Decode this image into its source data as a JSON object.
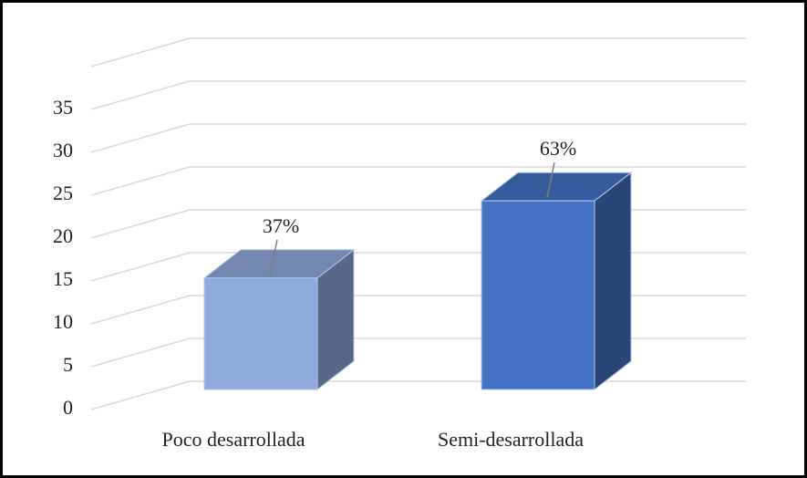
{
  "chart_data": {
    "type": "bar3d",
    "categories": [
      "Poco desarrollada",
      "Semi-desarrollada"
    ],
    "values": [
      13,
      22
    ],
    "percent_labels": [
      "37%",
      "63%"
    ],
    "colors": [
      "#8faadc",
      "#4472c4"
    ],
    "ylim": [
      0,
      40
    ],
    "yticks": [
      0,
      5,
      10,
      15,
      20,
      25,
      30,
      35
    ],
    "grid": true
  }
}
